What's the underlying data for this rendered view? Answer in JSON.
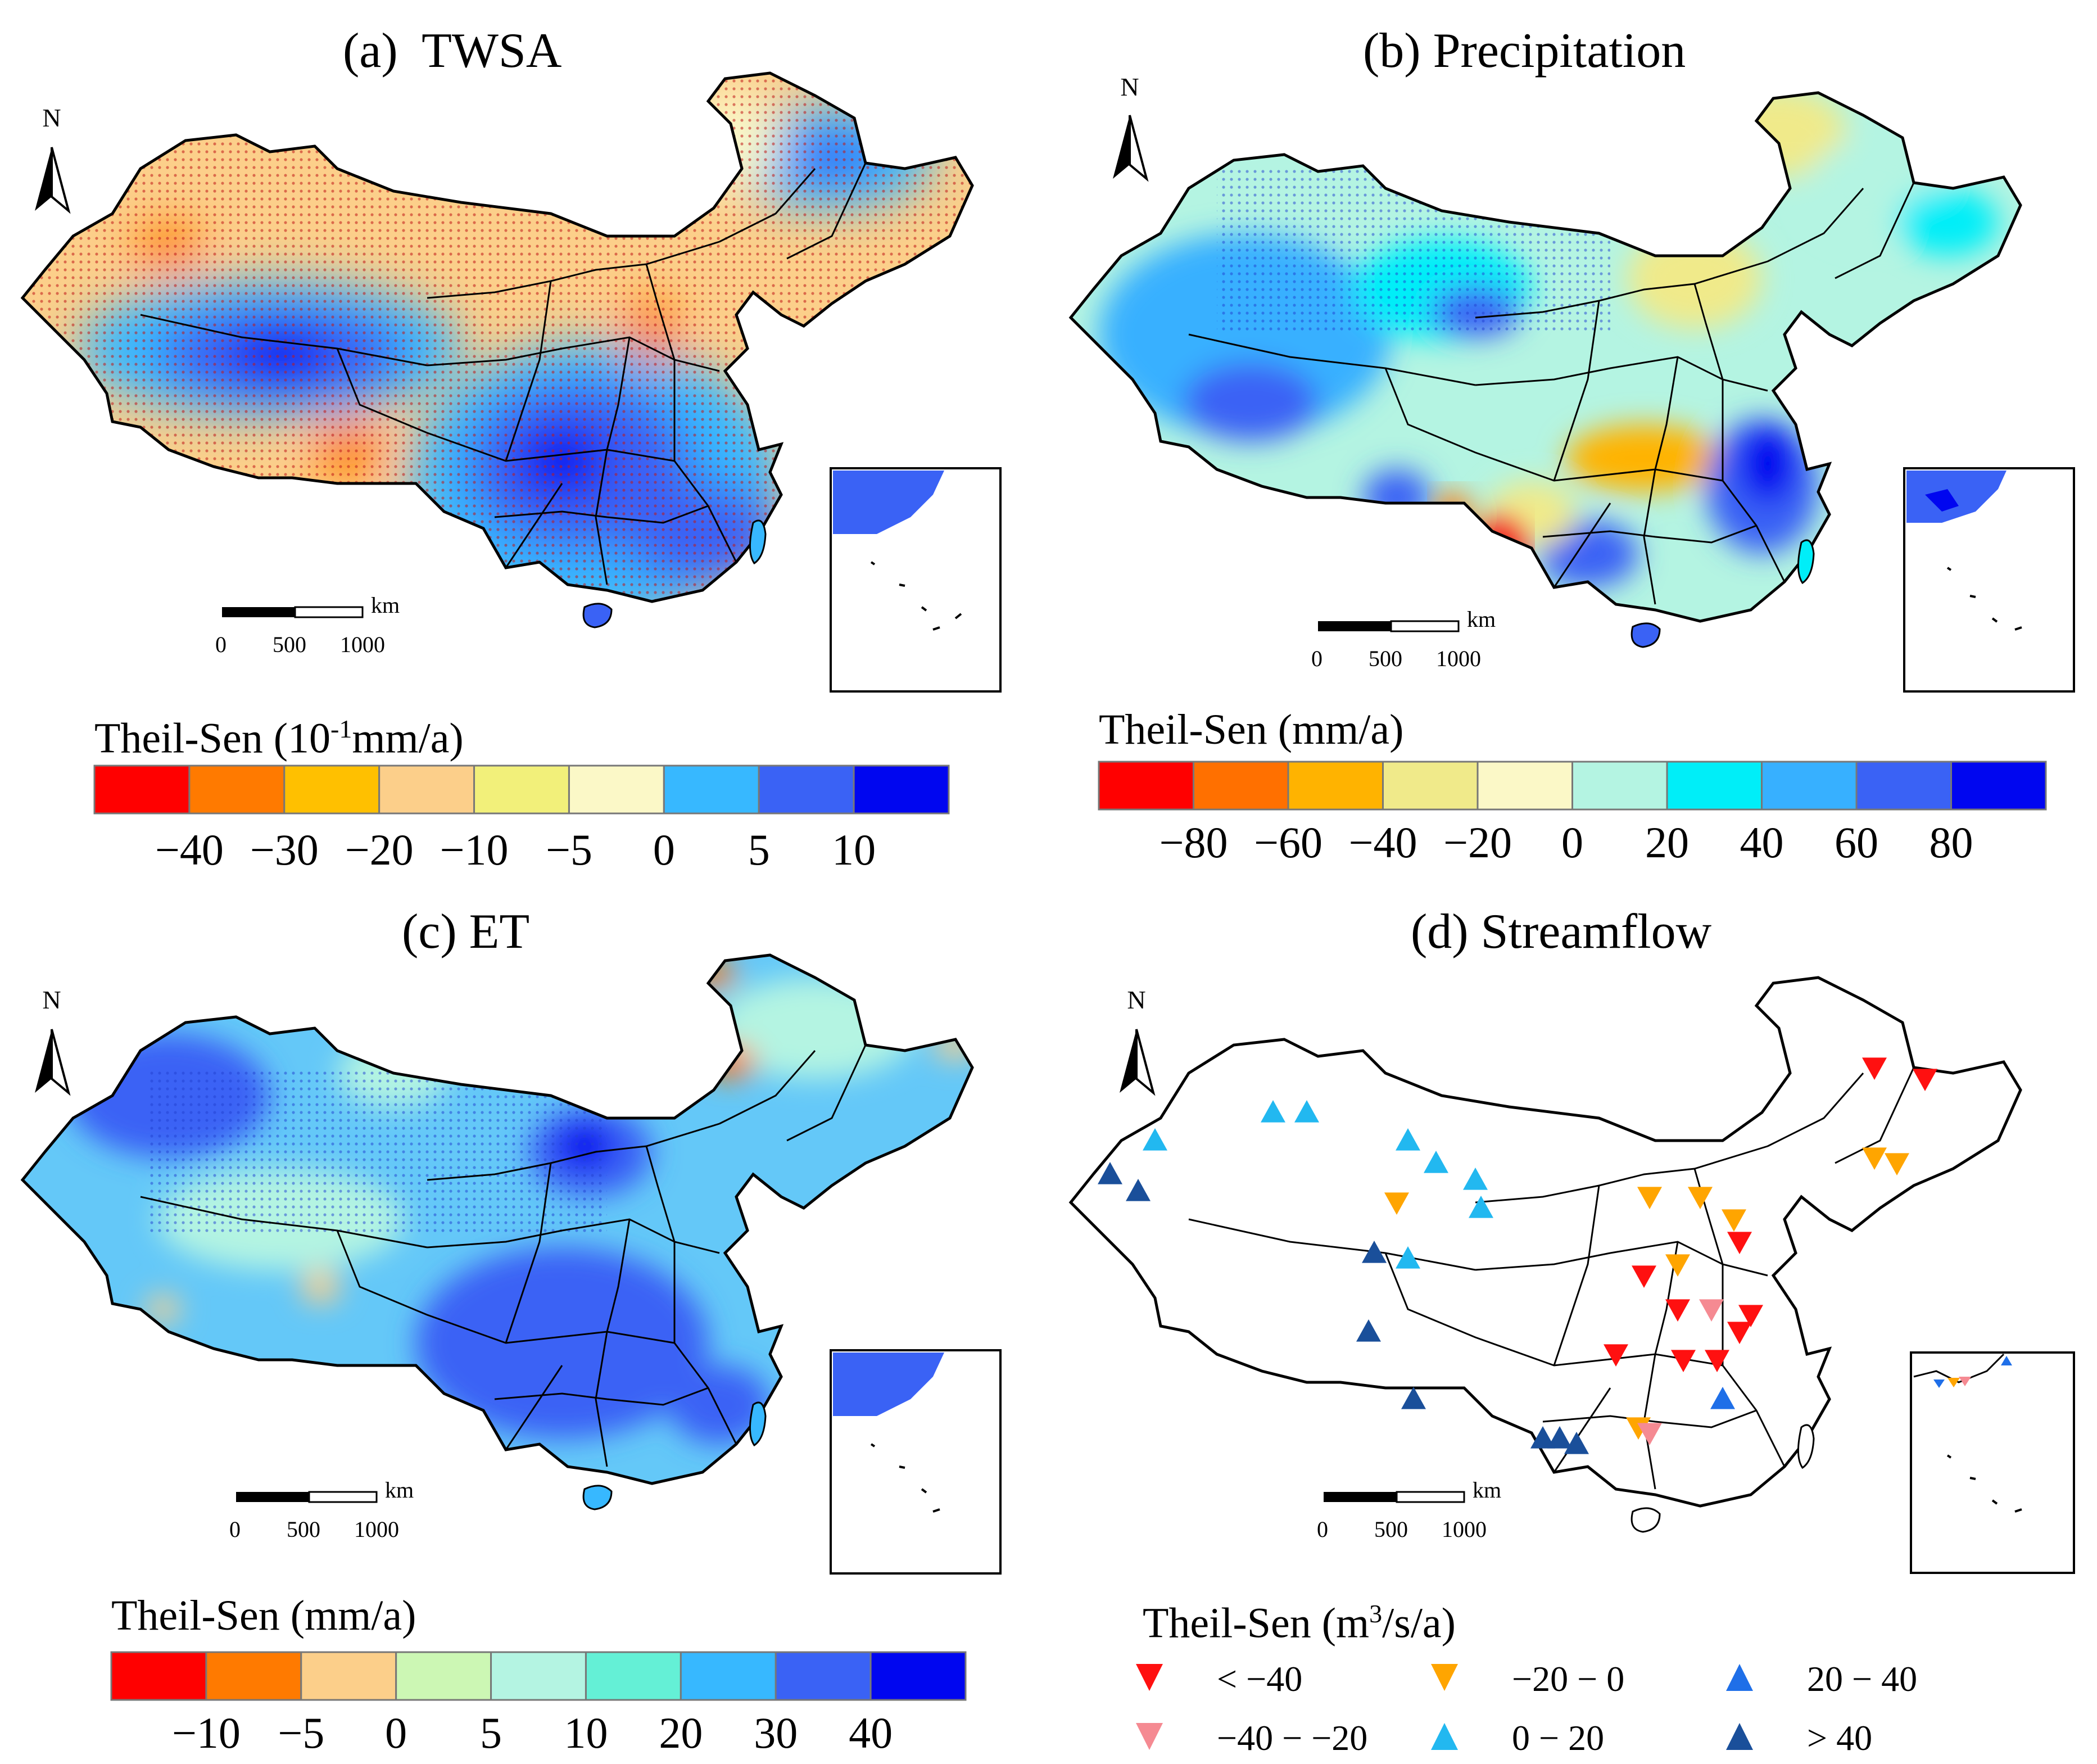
{
  "panels": {
    "a": {
      "title": "(a)  TWSA",
      "colorbar_title": "Theil-Sen (10",
      "colorbar_title_sup": "-1",
      "colorbar_title_end": "mm/a)",
      "colors": [
        "#ff0000",
        "#ff7a00",
        "#ffc000",
        "#fccf8a",
        "#f2f07a",
        "#fbf8c7",
        "#37b8ff",
        "#3a62f5",
        "#0006f0"
      ],
      "ticks": [
        "−40",
        "−30",
        "−20",
        "−10",
        "−5",
        "0",
        "5",
        "10"
      ]
    },
    "b": {
      "title": "(b) Precipitation",
      "colorbar_title": "Theil-Sen (mm/a)",
      "colors": [
        "#ff0000",
        "#ff7000",
        "#ffb300",
        "#f0ea8a",
        "#fbf8c7",
        "#b4f4e2",
        "#00eef8",
        "#37b0ff",
        "#3a62f5",
        "#0006f0"
      ],
      "ticks": [
        "−80",
        "−60",
        "−40",
        "−20",
        "0",
        "20",
        "40",
        "60",
        "80"
      ]
    },
    "c": {
      "title": "(c) ET",
      "colorbar_title": "Theil-Sen (mm/a)",
      "colors": [
        "#ff0000",
        "#ff7a00",
        "#fccf8a",
        "#ccf7b4",
        "#b4f4e2",
        "#64f0d6",
        "#37b8ff",
        "#3a62f5",
        "#0006f0"
      ],
      "ticks": [
        "−10",
        "−5",
        "0",
        "5",
        "10",
        "20",
        "30",
        "40"
      ]
    },
    "d": {
      "title": "(d) Streamflow",
      "legend_title": "Theil-Sen (m",
      "legend_title_sup": "3",
      "legend_title_end": "/s/a)",
      "legend": [
        {
          "label": "< −40",
          "color": "#ff1010",
          "shape": "down"
        },
        {
          "label": "−20 − 0",
          "color": "#ffa500",
          "shape": "down"
        },
        {
          "label": "20 − 40",
          "color": "#1f6fe8",
          "shape": "up"
        },
        {
          "label": "−40 − −20",
          "color": "#f58a92",
          "shape": "down"
        },
        {
          "label": "0 − 20",
          "color": "#22b8f0",
          "shape": "up"
        },
        {
          "label": "> 40",
          "color": "#1a4f9a",
          "shape": "up"
        }
      ]
    }
  },
  "north_label": "N",
  "scale_unit": "km",
  "scale_ticks": [
    "0",
    "500",
    "1000"
  ]
}
